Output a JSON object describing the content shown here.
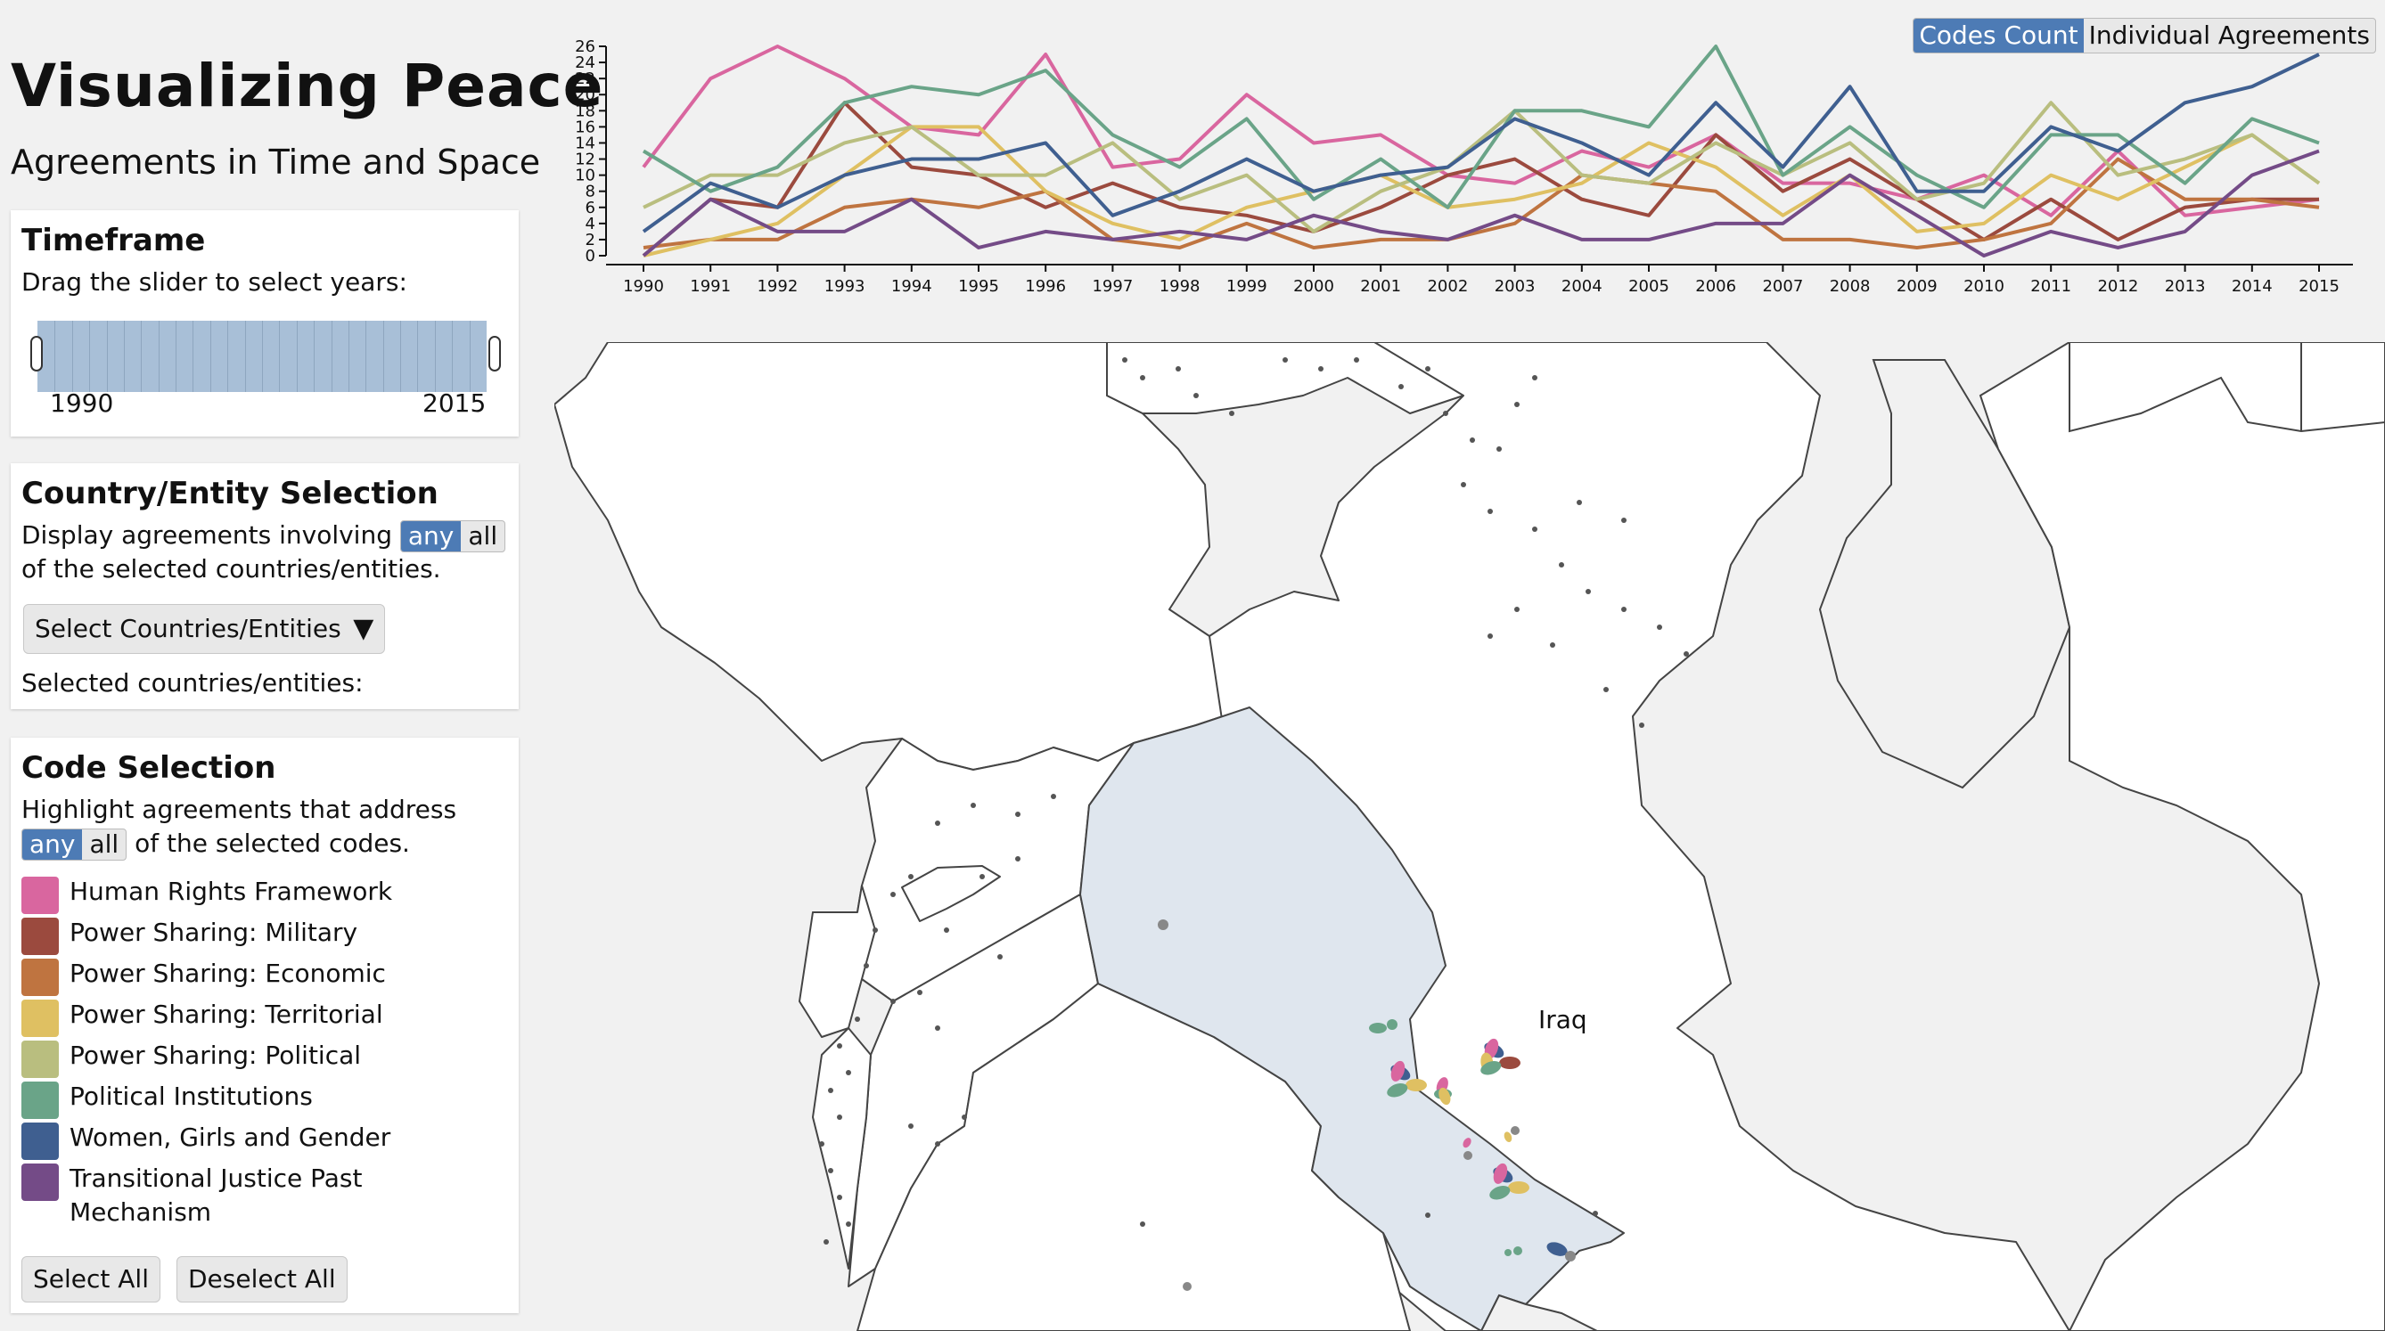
{
  "header": {
    "title": "Visualizing Peace",
    "subtitle": "Agreements in Time and Space"
  },
  "timeframe": {
    "title": "Timeframe",
    "instruction": "Drag the slider to select years:",
    "start_label": "1990",
    "end_label": "2015"
  },
  "country_selection": {
    "title": "Country/Entity Selection",
    "prefix": "Display agreements involving",
    "toggle_any": "any",
    "toggle_all": "all",
    "suffix": "of the selected countries/entities.",
    "select_label": "Select Countries/Entities",
    "selected_label": "Selected countries/entities:"
  },
  "code_selection": {
    "title": "Code Selection",
    "instruction": "Highlight agreements that address",
    "toggle_any": "any",
    "toggle_all": "all",
    "suffix": "of the selected codes.",
    "codes": [
      {
        "label": "Human Rights Framework",
        "color": "#d9669f"
      },
      {
        "label": "Power Sharing: Military",
        "color": "#9b4a3e"
      },
      {
        "label": "Power Sharing: Economic",
        "color": "#bf7440"
      },
      {
        "label": "Power Sharing: Territorial",
        "color": "#dfc062"
      },
      {
        "label": "Power Sharing: Political",
        "color": "#b9be7f"
      },
      {
        "label": "Political Institutions",
        "color": "#6aa488"
      },
      {
        "label": "Women, Girls and Gender",
        "color": "#3f5f90"
      },
      {
        "label": "Transitional Justice Past Mechanism",
        "color": "#744b87"
      }
    ],
    "select_all": "Select All",
    "deselect_all": "Deselect All"
  },
  "view_mode": {
    "codes_count": "Codes Count",
    "individual_agreements": "Individual Agreements"
  },
  "chart_data": {
    "type": "line",
    "x": [
      1990,
      1991,
      1992,
      1993,
      1994,
      1995,
      1996,
      1997,
      1998,
      1999,
      2000,
      2001,
      2002,
      2003,
      2004,
      2005,
      2006,
      2007,
      2008,
      2009,
      2010,
      2011,
      2012,
      2013,
      2014,
      2015
    ],
    "y_ticks": [
      0,
      2,
      4,
      6,
      8,
      10,
      12,
      14,
      16,
      18,
      20,
      22,
      24,
      26
    ],
    "ylim": [
      0,
      26
    ],
    "series": [
      {
        "name": "Human Rights Framework",
        "color": "#d9669f",
        "values": [
          11,
          22,
          26,
          22,
          16,
          15,
          25,
          11,
          12,
          20,
          14,
          15,
          10,
          9,
          13,
          11,
          15,
          9,
          9,
          7,
          10,
          5,
          13,
          5,
          6,
          7
        ]
      },
      {
        "name": "Power Sharing: Military",
        "color": "#9b4a3e",
        "values": [
          0,
          7,
          6,
          19,
          11,
          10,
          6,
          9,
          6,
          5,
          3,
          6,
          10,
          12,
          7,
          5,
          15,
          8,
          12,
          7,
          2,
          7,
          2,
          6,
          7,
          7
        ]
      },
      {
        "name": "Power Sharing: Economic",
        "color": "#bf7440",
        "values": [
          1,
          2,
          2,
          6,
          7,
          6,
          8,
          2,
          1,
          4,
          1,
          2,
          2,
          4,
          10,
          9,
          8,
          2,
          2,
          1,
          2,
          4,
          12,
          7,
          7,
          6
        ]
      },
      {
        "name": "Power Sharing: Territorial",
        "color": "#dfc062",
        "values": [
          0,
          2,
          4,
          10,
          16,
          16,
          8,
          4,
          2,
          6,
          8,
          10,
          6,
          7,
          9,
          14,
          11,
          5,
          10,
          3,
          4,
          10,
          7,
          11,
          15,
          9
        ]
      },
      {
        "name": "Power Sharing: Political",
        "color": "#b9be7f",
        "values": [
          6,
          10,
          10,
          14,
          16,
          10,
          10,
          14,
          7,
          10,
          3,
          8,
          11,
          18,
          10,
          9,
          14,
          10,
          14,
          7,
          9,
          19,
          10,
          12,
          15,
          9
        ]
      },
      {
        "name": "Political Institutions",
        "color": "#6aa488",
        "values": [
          13,
          8,
          11,
          19,
          21,
          20,
          23,
          15,
          11,
          17,
          7,
          12,
          6,
          18,
          18,
          16,
          26,
          10,
          16,
          10,
          6,
          15,
          15,
          9,
          17,
          14
        ]
      },
      {
        "name": "Women, Girls and Gender",
        "color": "#3f5f90",
        "values": [
          3,
          9,
          6,
          10,
          12,
          12,
          14,
          5,
          8,
          12,
          8,
          10,
          11,
          17,
          14,
          10,
          19,
          11,
          21,
          8,
          8,
          16,
          13,
          19,
          21,
          25
        ]
      },
      {
        "name": "Transitional Justice Past Mechanism",
        "color": "#744b87",
        "values": [
          0,
          7,
          3,
          3,
          7,
          1,
          3,
          2,
          3,
          2,
          5,
          3,
          2,
          5,
          2,
          2,
          4,
          4,
          10,
          5,
          0,
          3,
          1,
          3,
          10,
          13
        ]
      }
    ]
  },
  "map": {
    "country_label": "Iraq",
    "highlight_fill": "#dfe6ee"
  }
}
